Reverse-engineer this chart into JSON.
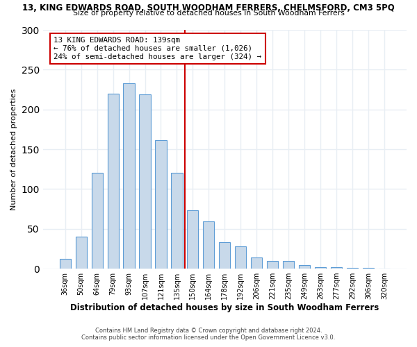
{
  "title_top": "13, KING EDWARDS ROAD, SOUTH WOODHAM FERRERS, CHELMSFORD, CM3 5PQ",
  "title_sub": "Size of property relative to detached houses in South Woodham Ferrers",
  "xlabel": "Distribution of detached houses by size in South Woodham Ferrers",
  "ylabel": "Number of detached properties",
  "bar_labels": [
    "36sqm",
    "50sqm",
    "64sqm",
    "79sqm",
    "93sqm",
    "107sqm",
    "121sqm",
    "135sqm",
    "150sqm",
    "164sqm",
    "178sqm",
    "192sqm",
    "206sqm",
    "221sqm",
    "235sqm",
    "249sqm",
    "263sqm",
    "277sqm",
    "292sqm",
    "306sqm",
    "320sqm"
  ],
  "bar_values": [
    12,
    40,
    120,
    220,
    233,
    219,
    161,
    120,
    73,
    59,
    33,
    28,
    14,
    10,
    10,
    4,
    2,
    2,
    1,
    1,
    0
  ],
  "bar_color": "#c8d9ea",
  "bar_edge_color": "#5b9bd5",
  "annotation_line_color": "#cc0000",
  "annotation_box_text": "13 KING EDWARDS ROAD: 139sqm\n← 76% of detached houses are smaller (1,026)\n24% of semi-detached houses are larger (324) →",
  "ylim": [
    0,
    300
  ],
  "yticks": [
    0,
    50,
    100,
    150,
    200,
    250,
    300
  ],
  "footer_line1": "Contains HM Land Registry data © Crown copyright and database right 2024.",
  "footer_line2": "Contains public sector information licensed under the Open Government Licence v3.0.",
  "bg_color": "#ffffff",
  "plot_bg_color": "#ffffff",
  "grid_color": "#e8eef4",
  "bar_width": 0.7
}
